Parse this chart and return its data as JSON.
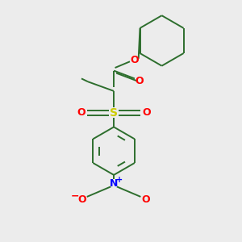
{
  "bg_color": "#ececec",
  "bond_color": "#2d6e2d",
  "o_color": "#ff0000",
  "s_color": "#cccc00",
  "n_color": "#0000ff",
  "line_width": 1.4,
  "figsize": [
    3.0,
    3.0
  ],
  "dpi": 100,
  "xlim": [
    0,
    10
  ],
  "ylim": [
    0,
    10
  ]
}
